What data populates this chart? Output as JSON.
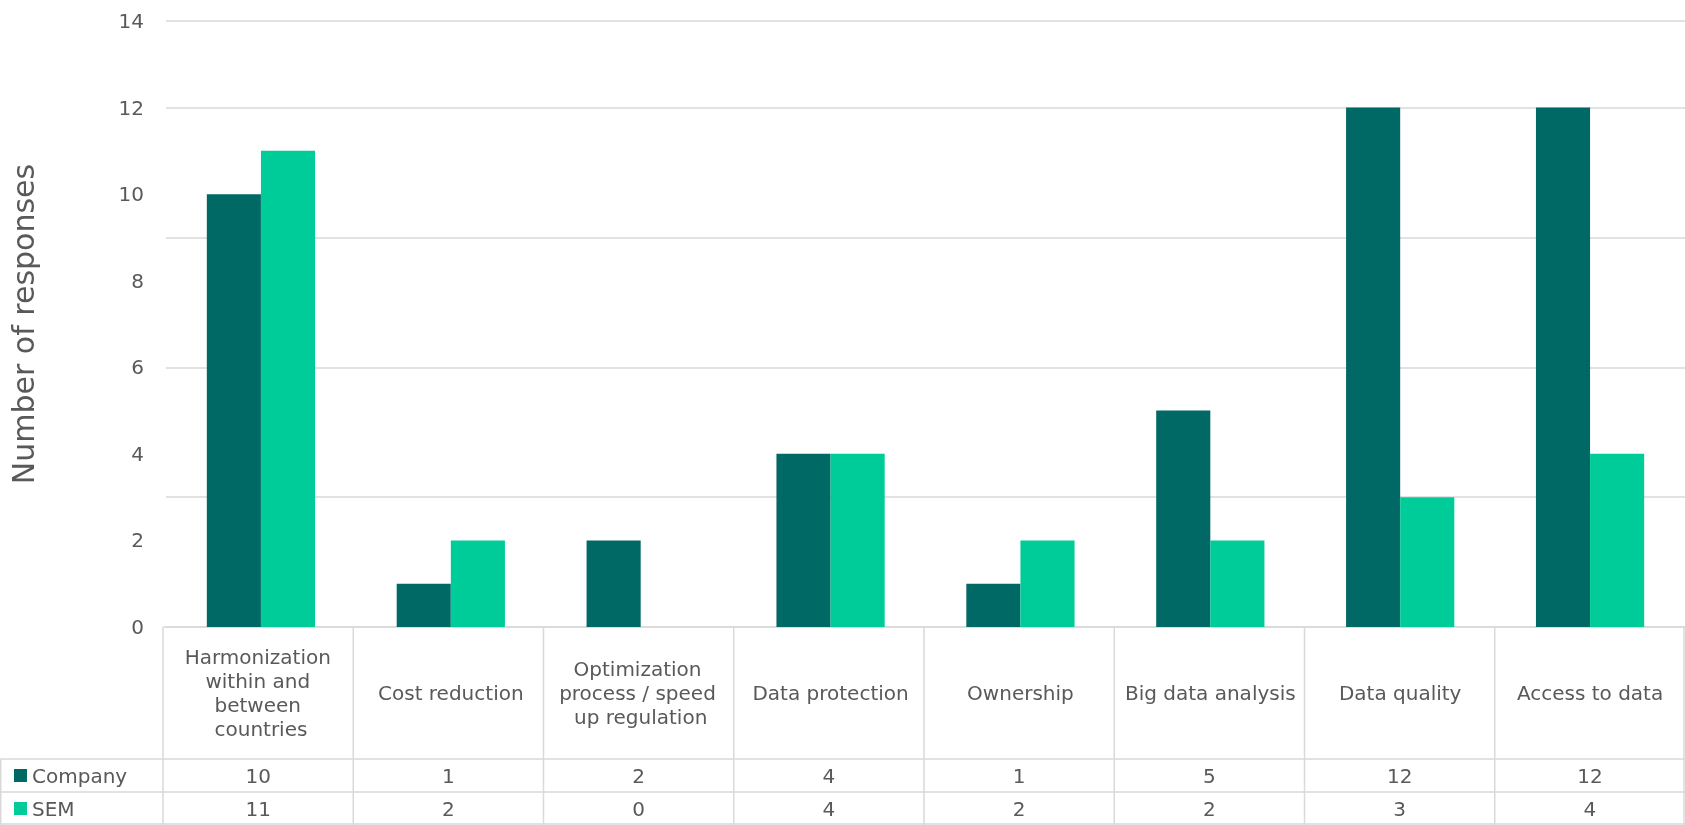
{
  "chart_data": {
    "type": "bar",
    "ylabel": "Number of responses",
    "categories": [
      "Harmonization within and between countries",
      "Cost reduction",
      "Optimization process / speed up regulation",
      "Data protection",
      "Ownership",
      "Big data analysis",
      "Data quality",
      "Access to data"
    ],
    "series": [
      {
        "name": "Company",
        "color": "#006966",
        "values": [
          10,
          1,
          2,
          4,
          1,
          5,
          12,
          12
        ]
      },
      {
        "name": "SEM",
        "color": "#00cc99",
        "values": [
          11,
          2,
          0,
          4,
          2,
          2,
          3,
          4
        ]
      }
    ],
    "ylim": [
      0,
      14
    ],
    "yticks": [
      0,
      2,
      4,
      6,
      8,
      10,
      12,
      14
    ],
    "grid": "y",
    "legend": "bottom",
    "data_labels": true
  }
}
